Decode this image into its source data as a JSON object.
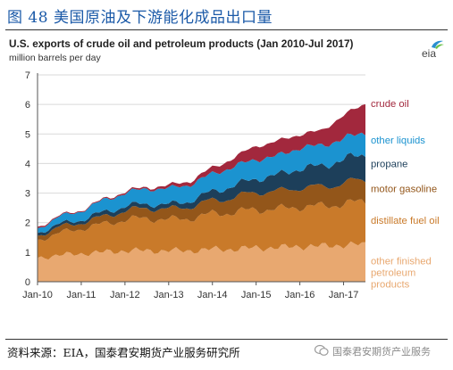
{
  "figure_title": "图 48 美国原油及下游能化成品出口量",
  "source_note": "资料来源：EIA，国泰君安期货产业服务研究所",
  "watermark": "国泰君安期货产业服务",
  "logo_text": "eia",
  "colors": {
    "title_blue": "#1b5aa8",
    "other_finished": "#e8a870",
    "distillate": "#c97a2a",
    "motor_gasoline": "#93561a",
    "propane": "#1d3f5a",
    "other_liquids": "#1b93d0",
    "crude_oil": "#a2283d"
  },
  "chart_data": {
    "type": "area",
    "stacked": true,
    "title": "U.S. exports of crude oil and petroleum products (Jan 2010-Jul 2017)",
    "ylabel": "million barrels per day",
    "ylim": [
      0,
      7
    ],
    "yticks": [
      "0",
      "1",
      "2",
      "3",
      "4",
      "5",
      "6",
      "7"
    ],
    "grid": true,
    "legend": "inline-right",
    "x_start": "2010-01",
    "x_end": "2017-07",
    "xticks": [
      {
        "label": "Jan-10",
        "date": "2010-01"
      },
      {
        "label": "Jan-11",
        "date": "2011-01"
      },
      {
        "label": "Jan-12",
        "date": "2012-01"
      },
      {
        "label": "Jan-13",
        "date": "2013-01"
      },
      {
        "label": "Jan-14",
        "date": "2014-01"
      },
      {
        "label": "Jan-15",
        "date": "2015-01"
      },
      {
        "label": "Jan-16",
        "date": "2016-01"
      },
      {
        "label": "Jan-17",
        "date": "2017-01"
      }
    ],
    "x": [
      "2010-01",
      "2010-07",
      "2011-01",
      "2011-07",
      "2012-01",
      "2012-07",
      "2013-01",
      "2013-07",
      "2014-01",
      "2014-07",
      "2015-01",
      "2015-07",
      "2016-01",
      "2016-07",
      "2017-01",
      "2017-07"
    ],
    "series": [
      {
        "name": "other finished petroleum products",
        "label_lines": [
          "other finished",
          "petroleum",
          "products"
        ],
        "color": "#e8a870",
        "values": [
          0.8,
          0.9,
          0.95,
          1.0,
          1.05,
          1.05,
          1.05,
          1.05,
          1.1,
          1.1,
          1.15,
          1.15,
          1.2,
          1.2,
          1.25,
          1.25
        ]
      },
      {
        "name": "distillate fuel oil",
        "label_lines": [
          "distillate fuel oil"
        ],
        "color": "#c97a2a",
        "values": [
          0.6,
          0.75,
          0.85,
          0.95,
          1.05,
          1.1,
          1.05,
          1.1,
          1.2,
          1.25,
          1.3,
          1.3,
          1.35,
          1.35,
          1.4,
          1.45
        ]
      },
      {
        "name": "motor gasoline",
        "label_lines": [
          "motor gasoline"
        ],
        "color": "#93561a",
        "values": [
          0.15,
          0.2,
          0.2,
          0.25,
          0.3,
          0.35,
          0.35,
          0.4,
          0.45,
          0.5,
          0.6,
          0.6,
          0.65,
          0.65,
          0.7,
          0.75
        ]
      },
      {
        "name": "propane",
        "label_lines": [
          "propane"
        ],
        "color": "#1d3f5a",
        "values": [
          0.1,
          0.1,
          0.1,
          0.15,
          0.15,
          0.15,
          0.15,
          0.2,
          0.3,
          0.4,
          0.45,
          0.55,
          0.65,
          0.7,
          0.8,
          0.85
        ]
      },
      {
        "name": "other liquids",
        "label_lines": [
          "other liquids"
        ],
        "color": "#1b93d0",
        "values": [
          0.15,
          0.25,
          0.3,
          0.4,
          0.45,
          0.5,
          0.55,
          0.55,
          0.6,
          0.65,
          0.65,
          0.65,
          0.7,
          0.7,
          0.7,
          0.75
        ]
      },
      {
        "name": "crude oil",
        "label_lines": [
          "crude oil"
        ],
        "color": "#a2283d",
        "values": [
          0.05,
          0.03,
          0.03,
          0.03,
          0.05,
          0.05,
          0.1,
          0.12,
          0.2,
          0.3,
          0.45,
          0.5,
          0.45,
          0.5,
          0.8,
          0.95
        ]
      }
    ]
  }
}
